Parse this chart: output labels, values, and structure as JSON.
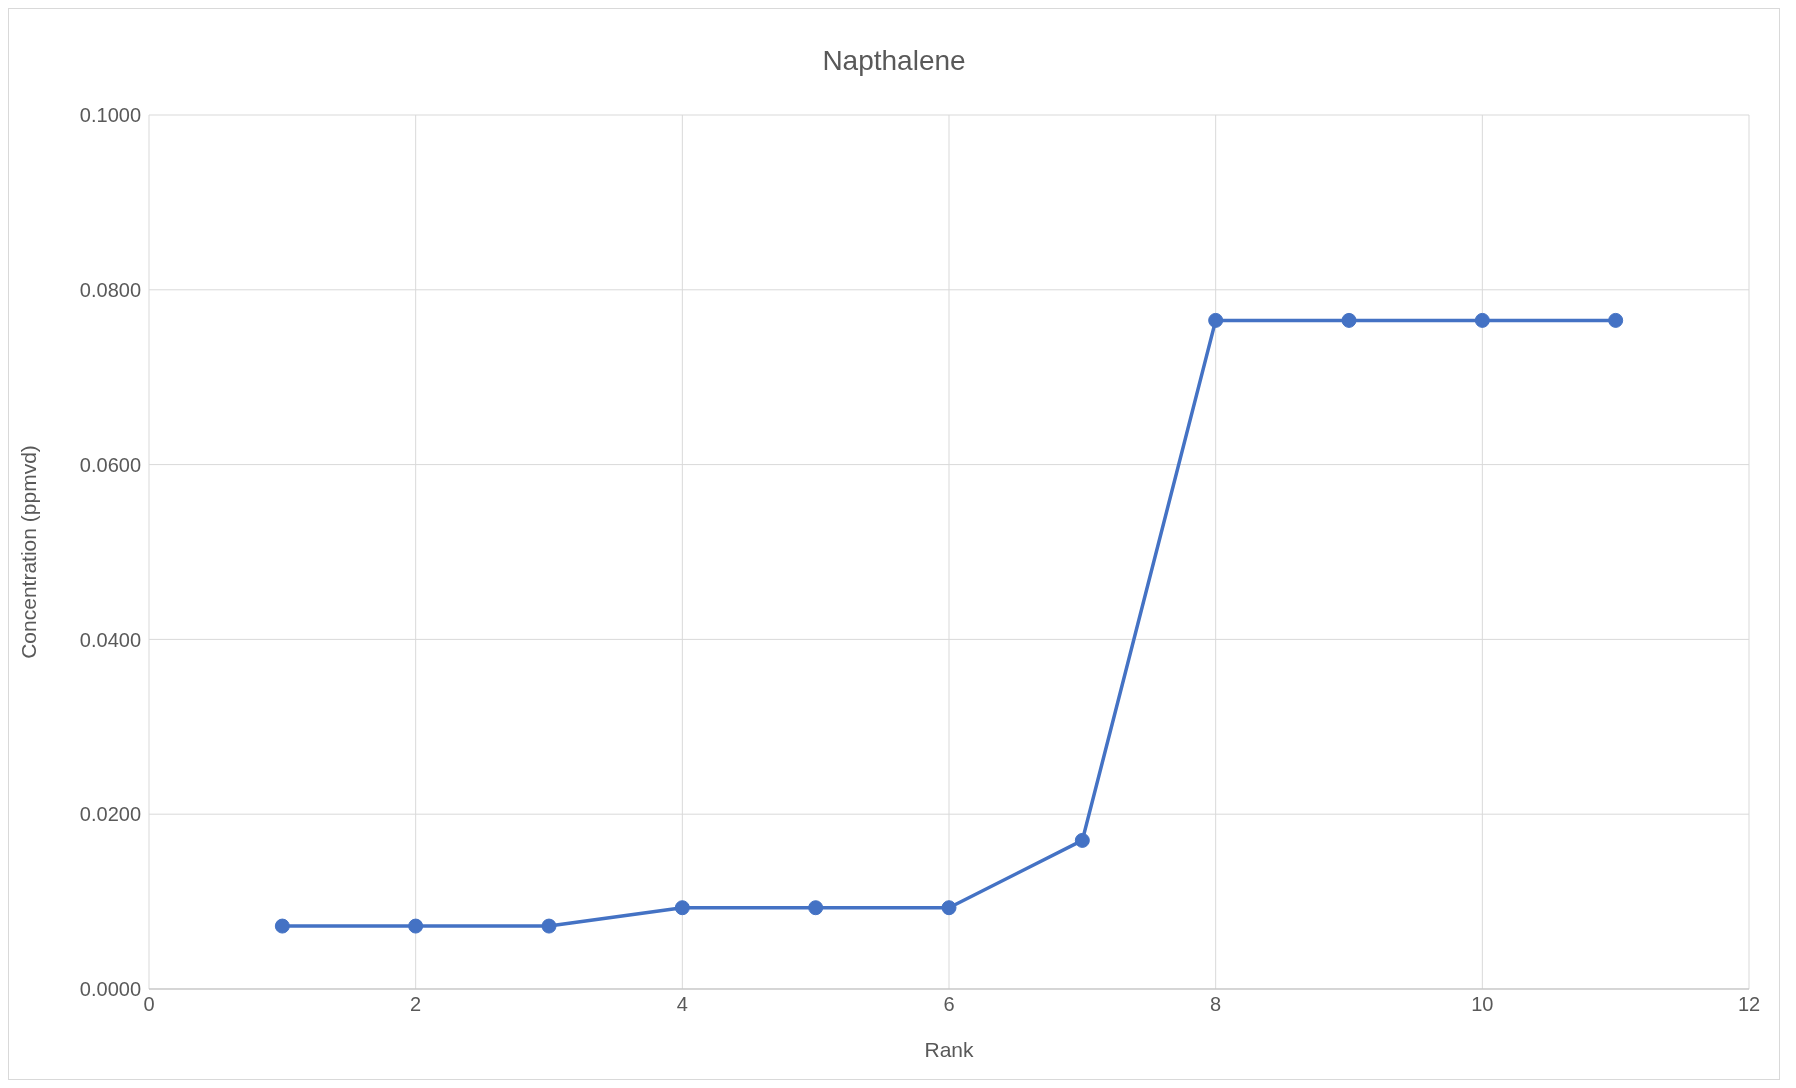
{
  "chart_data": {
    "type": "line",
    "title": "Napthalene",
    "xlabel": "Rank",
    "ylabel": "Concentration (ppmvd)",
    "x": [
      1,
      2,
      3,
      4,
      5,
      6,
      7,
      8,
      9,
      10,
      11
    ],
    "series": [
      {
        "color": "#4472c4",
        "values": [
          0.0072,
          0.0072,
          0.0072,
          0.0093,
          0.0093,
          0.0093,
          0.017,
          0.0765,
          0.0765,
          0.0765,
          0.0765
        ]
      }
    ],
    "xlim": [
      0,
      12
    ],
    "xticks": [
      0,
      2,
      4,
      6,
      8,
      10,
      12
    ],
    "ylim": [
      0,
      0.1
    ],
    "yticks": [
      {
        "value": 0,
        "label": "0.0000"
      },
      {
        "value": 0.02,
        "label": "0.0200"
      },
      {
        "value": 0.04,
        "label": "0.0400"
      },
      {
        "value": 0.06,
        "label": "0.0600"
      },
      {
        "value": 0.08,
        "label": "0.0800"
      },
      {
        "value": 0.1,
        "label": "0.1000"
      }
    ],
    "grid": true,
    "marker": "circle",
    "line_style": "solid",
    "legend": false
  }
}
